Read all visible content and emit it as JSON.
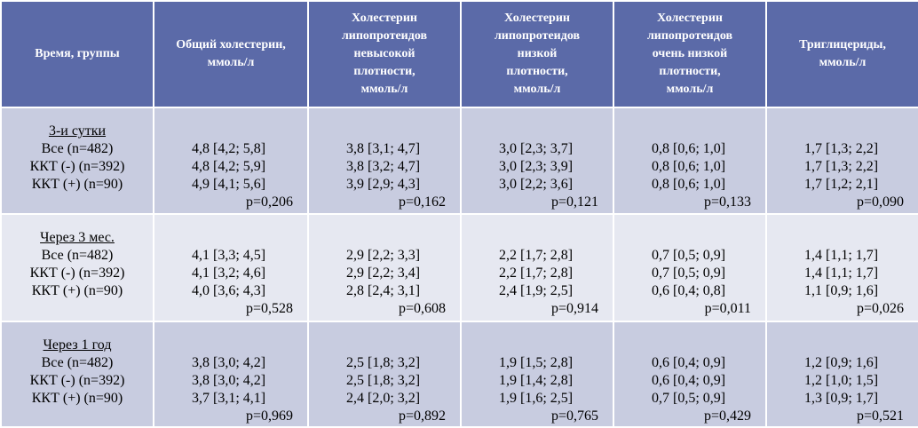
{
  "header": {
    "group": "Время, группы",
    "total": [
      "Общий холестерин,",
      "ммоль/л"
    ],
    "hdl": [
      "Холестерин",
      "липопротеидов",
      "невысокой",
      "плотности,",
      "ммоль/л"
    ],
    "ldl": [
      "Холестерин",
      "липопротеидов",
      "низкой",
      "плотности,",
      "ммоль/л"
    ],
    "vldl": [
      "Холестерин",
      "липопротеидов",
      "очень низкой",
      "плотности,",
      "ммоль/л"
    ],
    "tg": [
      "Триглицериды,",
      "ммоль/л"
    ]
  },
  "groups": [
    {
      "title": "3-и сутки",
      "rows": [
        "Все (n=482)",
        "ККТ (-) (n=392)",
        "ККТ (+) (n=90)"
      ],
      "total": {
        "values": [
          "4,8 [4,2; 5,8]",
          "4,8 [4,2; 5,9]",
          "4,9 [4,1; 5,6]"
        ],
        "p": "p=0,206"
      },
      "hdl": {
        "values": [
          "3,8 [3,1; 4,7]",
          "3,8 [3,2; 4,7]",
          "3,9 [2,9; 4,3]"
        ],
        "p": "p=0,162"
      },
      "ldl": {
        "values": [
          "3,0 [2,3; 3,7]",
          "3,0 [2,3; 3,9]",
          "3,0 [2,2; 3,6]"
        ],
        "p": "p=0,121"
      },
      "vldl": {
        "values": [
          "0,8 [0,6; 1,0]",
          "0,8 [0,6; 1,0]",
          "0,8 [0,6; 1,0]"
        ],
        "p": "p=0,133"
      },
      "tg": {
        "values": [
          "1,7 [1,3; 2,2]",
          "1,7 [1,3; 2,2]",
          "1,7 [1,2; 2,1]"
        ],
        "p": "p=0,090"
      }
    },
    {
      "title": "Через 3 мес.",
      "rows": [
        "Все (n=482)",
        "ККТ (-) (n=392)",
        "ККТ (+) (n=90)"
      ],
      "total": {
        "values": [
          "4,1 [3,3; 4,5]",
          "4,1 [3,2; 4,6]",
          "4,0 [3,6; 4,3]"
        ],
        "p": "p=0,528"
      },
      "hdl": {
        "values": [
          "2,9 [2,2; 3,3]",
          "2,9 [2,2; 3,4]",
          "2,8 [2,4; 3,1]"
        ],
        "p": "p=0,608"
      },
      "ldl": {
        "values": [
          "2,2 [1,7; 2,8]",
          "2,2 [1,7; 2,8]",
          "2,4 [1,9; 2,5]"
        ],
        "p": "p=0,914"
      },
      "vldl": {
        "values": [
          "0,7 [0,5; 0,9]",
          "0,7 [0,5; 0,9]",
          "0,6 [0,4; 0,8]"
        ],
        "p": "p=0,011"
      },
      "tg": {
        "values": [
          "1,4 [1,1; 1,7]",
          "1,4 [1,1; 1,7]",
          "1,1 [0,9; 1,6]"
        ],
        "p": "p=0,026"
      }
    },
    {
      "title": "Через 1 год",
      "rows": [
        "Все (n=482)",
        "ККТ (-) (n=392)",
        "ККТ (+) (n=90)"
      ],
      "total": {
        "values": [
          "3,8 [3,0; 4,2]",
          "3,8 [3,0; 4,2]",
          "3,7 [3,1; 4,1]"
        ],
        "p": "p=0,969"
      },
      "hdl": {
        "values": [
          "2,5 [1,8; 3,2]",
          "2,5 [1,8; 3,2]",
          "2,4 [2,0; 3,2]"
        ],
        "p": "p=0,892"
      },
      "ldl": {
        "values": [
          "1,9 [1,5; 2,8]",
          "1,9 [1,4; 2,8]",
          "1,9 [1,6; 2,5]"
        ],
        "p": "p=0,765"
      },
      "vldl": {
        "values": [
          "0,6 [0,4; 0,9]",
          "0,6 [0,4; 0,9]",
          "0,7 [0,5; 0,9]"
        ],
        "p": "p=0,429"
      },
      "tg": {
        "values": [
          "1,2 [0,9; 1,6]",
          "1,2 [1,0; 1,5]",
          "1,3 [0,9; 1,7]"
        ],
        "p": "p=0,521"
      }
    }
  ]
}
